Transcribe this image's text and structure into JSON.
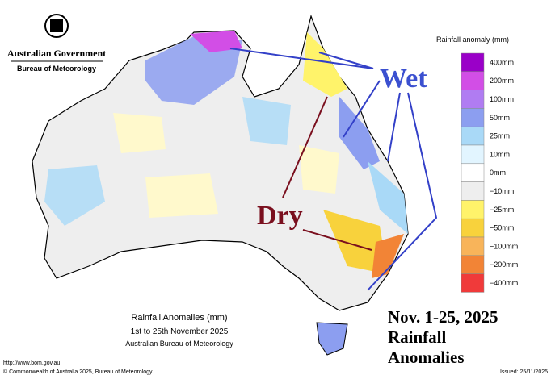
{
  "header": {
    "agency": "Australian Government",
    "bureau": "Bureau of Meteorology"
  },
  "legend": {
    "title": "Rainfall anomaly (mm)",
    "items": [
      {
        "label": "400mm",
        "color": "#9a00c8"
      },
      {
        "label": "200mm",
        "color": "#d24ee6"
      },
      {
        "label": "100mm",
        "color": "#b07cf2"
      },
      {
        "label": "50mm",
        "color": "#8c9ef0"
      },
      {
        "label": "25mm",
        "color": "#a9d9f7"
      },
      {
        "label": "10mm",
        "color": "#e2f5ff"
      },
      {
        "label": "0mm",
        "color": "#ffffff"
      },
      {
        "label": "−10mm",
        "color": "#eeeeee"
      },
      {
        "label": "−25mm",
        "color": "#fff36a"
      },
      {
        "label": "−50mm",
        "color": "#f8d23c"
      },
      {
        "label": "−100mm",
        "color": "#f8b45a"
      },
      {
        "label": "−200mm",
        "color": "#f28436"
      },
      {
        "label": "−400mm",
        "color": "#f03a3a"
      }
    ]
  },
  "annotations": {
    "wet": "Wet",
    "dry": "Dry"
  },
  "caption": {
    "title": "Rainfall Anomalies (mm)",
    "period": "1st to 25th November 2025",
    "source": "Australian Bureau of Meteorology"
  },
  "overlay": {
    "line1": "Nov. 1-25, 2025",
    "line2": "Rainfall",
    "line3": "Anomalies"
  },
  "footer": {
    "url": "http://www.bom.gov.au",
    "copyright": "© Commonwealth of Australia 2025, Bureau of Meteorology",
    "issued": "Issued: 25/11/2025"
  }
}
